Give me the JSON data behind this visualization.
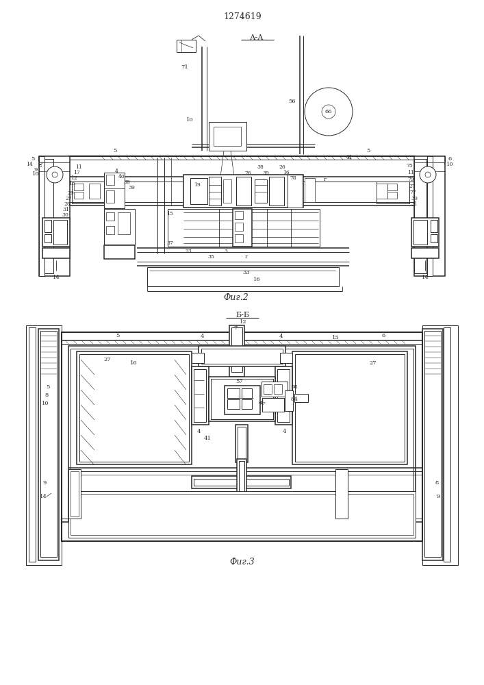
{
  "title": "1274619",
  "bg_color": "#ffffff",
  "lc": "#2a2a2a",
  "fig_width": 7.07,
  "fig_height": 10.0,
  "label_AA": "А-А",
  "label_BB": "Б-Б",
  "caption1": "Фиг.2",
  "caption2": "Фиг.3"
}
